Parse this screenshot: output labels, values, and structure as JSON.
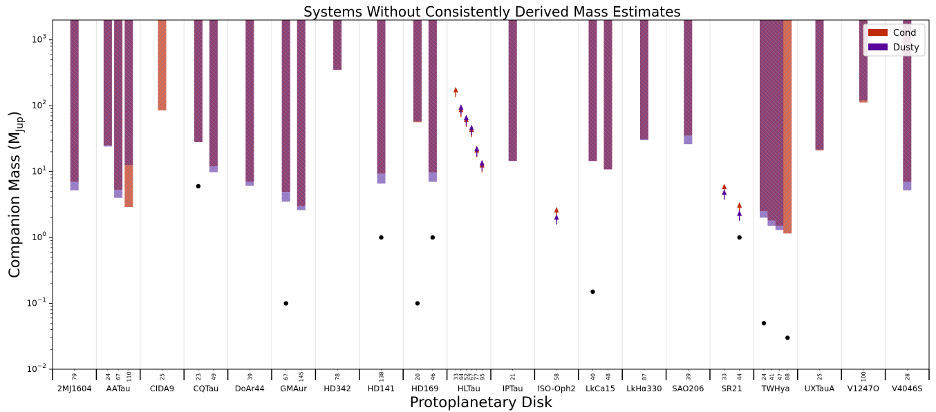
{
  "chart_data": {
    "type": "bar",
    "title": "Systems Without Consistently Derived Mass Estimates",
    "xlabel": "Protoplanetary Disk",
    "ylabel": "Companion Mass (M",
    "ylabel_sub": "Jup",
    "ylabel_close": ")",
    "yscale": "log",
    "ylim": [
      0.01,
      2000
    ],
    "yticks": [
      {
        "value": 0.01,
        "base": "10",
        "exp": "−2"
      },
      {
        "value": 0.1,
        "base": "10",
        "exp": "−1"
      },
      {
        "value": 1,
        "base": "10",
        "exp": "0"
      },
      {
        "value": 10,
        "base": "10",
        "exp": "1"
      },
      {
        "value": 100,
        "base": "10",
        "exp": "2"
      },
      {
        "value": 1000,
        "base": "10",
        "exp": "3"
      }
    ],
    "legend": {
      "placement": "top-right",
      "entries": [
        {
          "label": "Cond",
          "color": "#bf2a0a"
        },
        {
          "label": "Dusty",
          "color": "#58079a"
        }
      ]
    },
    "colors": {
      "cond_bar": "#d9694f",
      "dusty_bar": "#9b7fcf",
      "overlap_bar": "#8d3d72",
      "hatch": "#5a78b5",
      "cond_arrow": "#bf2a0a",
      "dusty_arrow": "#58079a",
      "point": "#000000",
      "divider": "#e6e6e6"
    },
    "categories": [
      {
        "name": "2MJ1604",
        "radii": [
          "79"
        ]
      },
      {
        "name": "AATau",
        "radii": [
          "24",
          "67",
          "110"
        ]
      },
      {
        "name": "CIDA9",
        "radii": [
          "25"
        ]
      },
      {
        "name": "CQTau",
        "radii": [
          "23",
          "49"
        ]
      },
      {
        "name": "DoAr44",
        "radii": [
          "39"
        ]
      },
      {
        "name": "GMAur",
        "radii": [
          "67",
          "145"
        ]
      },
      {
        "name": "HD342",
        "radii": [
          "78"
        ]
      },
      {
        "name": "HD141",
        "radii": [
          "138"
        ]
      },
      {
        "name": "HD169",
        "radii": [
          "20",
          "46"
        ]
      },
      {
        "name": "HLTau",
        "radii": [
          "33",
          "44",
          "52",
          "67",
          "77",
          "95"
        ]
      },
      {
        "name": "IPTau",
        "radii": [
          "21"
        ]
      },
      {
        "name": "ISO-Oph2",
        "radii": [
          "58"
        ]
      },
      {
        "name": "LkCa15",
        "radii": [
          "40",
          "48"
        ]
      },
      {
        "name": "LkHα330",
        "radii": [
          "87"
        ]
      },
      {
        "name": "SAO206",
        "radii": [
          "39"
        ]
      },
      {
        "name": "SR21",
        "radii": [
          "33",
          "44"
        ]
      },
      {
        "name": "TWHya",
        "radii": [
          "24",
          "41",
          "47",
          "88"
        ]
      },
      {
        "name": "UXTauA",
        "radii": [
          "25"
        ]
      },
      {
        "name": "V1247O",
        "radii": [
          "100"
        ]
      },
      {
        "name": "V4046S",
        "radii": [
          "28"
        ]
      }
    ],
    "bars": [
      {
        "system": "2MJ1604",
        "gap": "79",
        "cond_min": 7,
        "dusty_min": 5.2
      },
      {
        "system": "AATau",
        "gap": "24",
        "cond_min": 25,
        "dusty_min": 24
      },
      {
        "system": "AATau",
        "gap": "67",
        "cond_min": 5.3,
        "dusty_min": 4
      },
      {
        "system": "AATau",
        "gap": "110",
        "cond_min": 2.9,
        "dusty_min": 12.5
      },
      {
        "system": "CIDA9",
        "gap": "25",
        "cond_min": 85,
        "dusty_min": null
      },
      {
        "system": "CQTau",
        "gap": "23",
        "cond_min": 28,
        "dusty_min": 28
      },
      {
        "system": "CQTau",
        "gap": "49",
        "cond_min": 12,
        "dusty_min": 9.8
      },
      {
        "system": "DoAr44",
        "gap": "39",
        "cond_min": 7,
        "dusty_min": 6.1
      },
      {
        "system": "GMAur",
        "gap": "67",
        "cond_min": 4.9,
        "dusty_min": 3.5
      },
      {
        "system": "GMAur",
        "gap": "145",
        "cond_min": 3,
        "dusty_min": 2.6
      },
      {
        "system": "HD342",
        "gap": "78",
        "cond_min": 350,
        "dusty_min": 350
      },
      {
        "system": "HD141",
        "gap": "138",
        "cond_min": 9.3,
        "dusty_min": 6.6
      },
      {
        "system": "HD169",
        "gap": "20",
        "cond_min": 56,
        "dusty_min": 58
      },
      {
        "system": "HD169",
        "gap": "46",
        "cond_min": 9.8,
        "dusty_min": 7
      },
      {
        "system": "IPTau",
        "gap": "21",
        "cond_min": 14.5,
        "dusty_min": 14.5
      },
      {
        "system": "LkCa15",
        "gap": "40",
        "cond_min": 14.5,
        "dusty_min": 14.5
      },
      {
        "system": "LkCa15",
        "gap": "48",
        "cond_min": 10.8,
        "dusty_min": 10.8
      },
      {
        "system": "LkHα330",
        "gap": "87",
        "cond_min": 31,
        "dusty_min": 30
      },
      {
        "system": "SAO206",
        "gap": "39",
        "cond_min": 35,
        "dusty_min": 26
      },
      {
        "system": "TWHya",
        "gap": "24",
        "cond_min": 2.5,
        "dusty_min": 2
      },
      {
        "system": "TWHya",
        "gap": "41",
        "cond_min": 1.8,
        "dusty_min": 1.5
      },
      {
        "system": "TWHya",
        "gap": "47",
        "cond_min": 1.5,
        "dusty_min": 1.3
      },
      {
        "system": "TWHya",
        "gap": "88",
        "cond_min": 1.15,
        "dusty_min": null
      },
      {
        "system": "UXTauA",
        "gap": "25",
        "cond_min": 21,
        "dusty_min": 21.5
      },
      {
        "system": "V1247O",
        "gap": "100",
        "cond_min": 112,
        "dusty_min": 120
      },
      {
        "system": "V4046S",
        "gap": "28",
        "cond_min": 7,
        "dusty_min": 5.2
      }
    ],
    "lower_limits": [
      {
        "system": "HLTau",
        "gap": "33",
        "cond": 180,
        "dusty": null
      },
      {
        "system": "HLTau",
        "gap": "44",
        "cond": 90,
        "dusty": 98
      },
      {
        "system": "HLTau",
        "gap": "52",
        "cond": 64,
        "dusty": 68
      },
      {
        "system": "HLTau",
        "gap": "67",
        "cond": 45,
        "dusty": 48
      },
      {
        "system": "HLTau",
        "gap": "77",
        "cond": 22,
        "dusty": 23
      },
      {
        "system": "HLTau",
        "gap": "95",
        "cond": 13,
        "dusty": 14
      },
      {
        "system": "ISO-Oph2",
        "gap": "58",
        "cond": 2.7,
        "dusty": 2.1
      },
      {
        "system": "SR21",
        "gap": "33",
        "cond": 6.1,
        "dusty": 5
      },
      {
        "system": "SR21",
        "gap": "44",
        "cond": 3.2,
        "dusty": 2.4
      }
    ],
    "points": [
      {
        "system": "CQTau",
        "gap": "23",
        "mass": 6
      },
      {
        "system": "GMAur",
        "gap": "67",
        "mass": 0.1
      },
      {
        "system": "HD141",
        "gap": "138",
        "mass": 1
      },
      {
        "system": "HD169",
        "gap": "20",
        "mass": 0.1
      },
      {
        "system": "HD169",
        "gap": "46",
        "mass": 1
      },
      {
        "system": "LkCa15",
        "gap": "40",
        "mass": 0.15
      },
      {
        "system": "SR21",
        "gap": "44",
        "mass": 1
      },
      {
        "system": "TWHya",
        "gap": "24",
        "mass": 0.05
      },
      {
        "system": "TWHya",
        "gap": "88",
        "mass": 0.03
      }
    ]
  }
}
